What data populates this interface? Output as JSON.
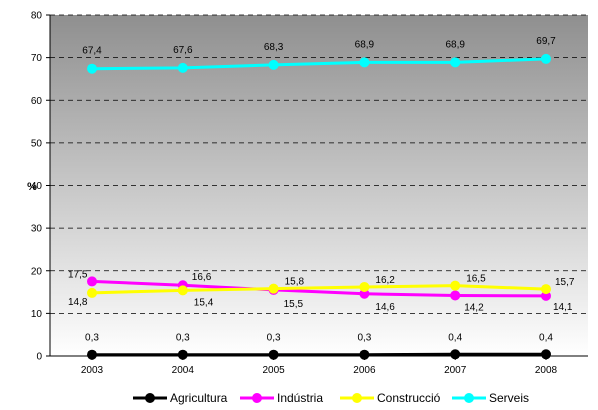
{
  "chart_data": {
    "type": "line",
    "categories": [
      "2003",
      "2004",
      "2005",
      "2006",
      "2007",
      "2008"
    ],
    "ylabel": "%",
    "ylim": [
      0,
      80
    ],
    "yticks": [
      0,
      10,
      20,
      30,
      40,
      50,
      60,
      70,
      80
    ],
    "grid": true,
    "legend_position": "bottom",
    "series": [
      {
        "name": "Agricultura",
        "color": "#000000",
        "values": [
          0.3,
          0.3,
          0.3,
          0.3,
          0.4,
          0.4
        ],
        "labels": [
          "0,3",
          "0,3",
          "0,3",
          "0,3",
          "0,4",
          "0,4"
        ]
      },
      {
        "name": "Indústria",
        "color": "#ff00ff",
        "values": [
          17.5,
          16.6,
          15.5,
          14.6,
          14.2,
          14.1
        ],
        "labels": [
          "17,5",
          "16,6",
          "15,5",
          "14,6",
          "14,2",
          "14,1"
        ]
      },
      {
        "name": "Construcció",
        "color": "#ffff00",
        "values": [
          14.8,
          15.4,
          15.8,
          16.2,
          16.5,
          15.7
        ],
        "labels": [
          "14,8",
          "15,4",
          "15,8",
          "16,2",
          "16,5",
          "15,7"
        ]
      },
      {
        "name": "Serveis",
        "color": "#00ffff",
        "values": [
          67.4,
          67.6,
          68.3,
          68.9,
          68.9,
          69.7
        ],
        "labels": [
          "67,4",
          "67,6",
          "68,3",
          "68,9",
          "68,9",
          "69,7"
        ]
      }
    ]
  }
}
